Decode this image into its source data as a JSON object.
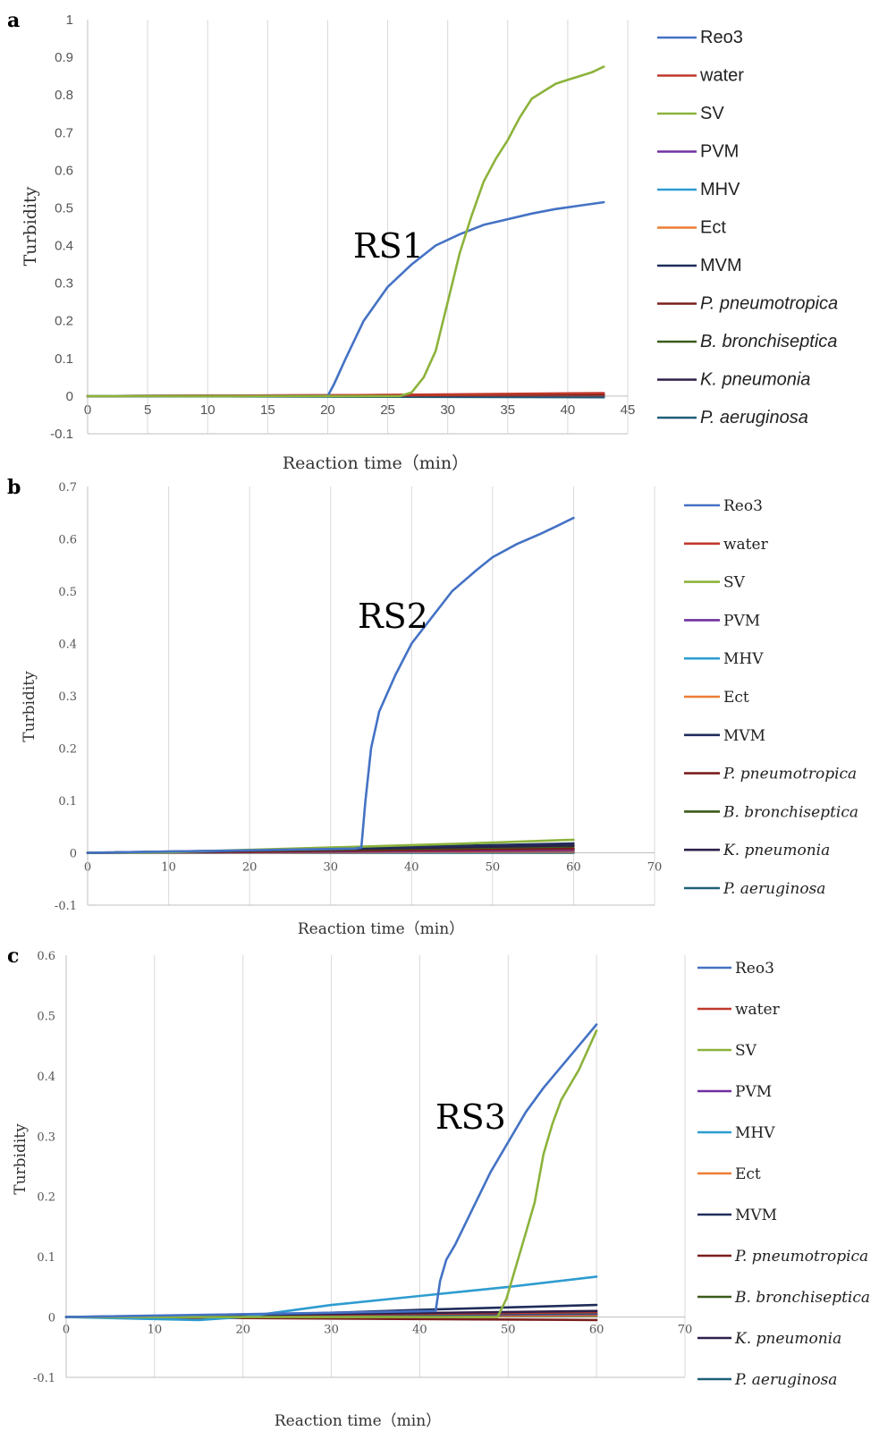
{
  "chart_data": [
    {
      "id": "a",
      "panel_label": "a",
      "type": "line",
      "xlabel": "Reaction time（min）",
      "ylabel": "Turbidity",
      "xlim": [
        0,
        45
      ],
      "ylim": [
        -0.1,
        1
      ],
      "x_ticks": [
        "0",
        "5",
        "10",
        "15",
        "20",
        "25",
        "30",
        "35",
        "40",
        "45"
      ],
      "y_ticks": [
        "-0.1",
        "0",
        "0.1",
        "0.2",
        "0.3",
        "0.4",
        "0.5",
        "0.6",
        "0.7",
        "0.8",
        "0.9",
        "1"
      ],
      "annotation": {
        "text": "RS1",
        "x": 25,
        "y": 0.4
      },
      "grid": "vertical",
      "legend_position": "right",
      "series": [
        {
          "name": "Reo3",
          "italic": false,
          "color": "#4472c4",
          "points": [
            [
              0,
              0
            ],
            [
              20,
              0
            ],
            [
              20.5,
              0.03
            ],
            [
              21.5,
              0.1
            ],
            [
              23,
              0.2
            ],
            [
              25,
              0.29
            ],
            [
              27,
              0.35
            ],
            [
              29,
              0.4
            ],
            [
              31,
              0.43
            ],
            [
              33,
              0.455
            ],
            [
              35,
              0.47
            ],
            [
              37,
              0.485
            ],
            [
              39,
              0.497
            ],
            [
              41,
              0.506
            ],
            [
              43,
              0.515
            ]
          ]
        },
        {
          "name": "water",
          "italic": false,
          "color": "#c0392b",
          "points": [
            [
              0,
              0
            ],
            [
              20,
              0.002
            ],
            [
              43,
              0.008
            ]
          ]
        },
        {
          "name": "SV",
          "italic": false,
          "color": "#8cb33c",
          "points": [
            [
              0,
              0
            ],
            [
              26,
              0
            ],
            [
              27,
              0.01
            ],
            [
              28,
              0.05
            ],
            [
              29,
              0.12
            ],
            [
              30,
              0.25
            ],
            [
              31,
              0.38
            ],
            [
              32,
              0.48
            ],
            [
              33,
              0.57
            ],
            [
              34,
              0.63
            ],
            [
              35,
              0.68
            ],
            [
              36,
              0.74
            ],
            [
              37,
              0.79
            ],
            [
              38,
              0.81
            ],
            [
              39,
              0.83
            ],
            [
              40,
              0.84
            ],
            [
              41,
              0.85
            ],
            [
              42,
              0.86
            ],
            [
              43,
              0.875
            ]
          ]
        },
        {
          "name": "PVM",
          "italic": false,
          "color": "#7030a0",
          "points": [
            [
              0,
              0
            ],
            [
              43,
              0.002
            ]
          ]
        },
        {
          "name": "MHV",
          "italic": false,
          "color": "#2e9cd0",
          "points": [
            [
              0,
              0
            ],
            [
              43,
              -0.002
            ]
          ]
        },
        {
          "name": "Ect",
          "italic": false,
          "color": "#ed7d31",
          "points": [
            [
              0,
              0
            ],
            [
              43,
              0.004
            ]
          ]
        },
        {
          "name": "MVM",
          "italic": false,
          "color": "#1f2d5a",
          "points": [
            [
              0,
              0
            ],
            [
              43,
              0.003
            ]
          ]
        },
        {
          "name": "P. pneumotropica",
          "italic": true,
          "color": "#7b1e1e",
          "points": [
            [
              0,
              0
            ],
            [
              43,
              0.005
            ]
          ]
        },
        {
          "name": "B. bronchiseptica",
          "italic": true,
          "color": "#3a5a1a",
          "points": [
            [
              0,
              0
            ],
            [
              43,
              0.001
            ]
          ]
        },
        {
          "name": "K. pneumonia",
          "italic": true,
          "color": "#2e1f4a",
          "points": [
            [
              0,
              0
            ],
            [
              43,
              0
            ]
          ]
        },
        {
          "name": "P. aeruginosa",
          "italic": true,
          "color": "#1f5f78",
          "points": [
            [
              0,
              0
            ],
            [
              43,
              -0.003
            ]
          ]
        }
      ]
    },
    {
      "id": "b",
      "panel_label": "b",
      "type": "line",
      "xlabel": "Reaction time（min）",
      "ylabel": "Turbidity",
      "xlim": [
        0,
        70
      ],
      "ylim": [
        -0.1,
        0.7
      ],
      "x_ticks": [
        "0",
        "10",
        "20",
        "30",
        "40",
        "50",
        "60",
        "70"
      ],
      "y_ticks": [
        "-0.1",
        "0",
        "0.1",
        "0.2",
        "0.3",
        "0.4",
        "0.5",
        "0.6",
        "0.7"
      ],
      "annotation": {
        "text": "RS2",
        "x": 33.5,
        "y": 0.44
      },
      "grid": "vertical",
      "legend_position": "right",
      "series": [
        {
          "name": "Reo3",
          "italic": false,
          "color": "#4472c4",
          "points": [
            [
              0,
              0
            ],
            [
              33,
              0.008
            ],
            [
              33.8,
              0.01
            ],
            [
              34.3,
              0.1
            ],
            [
              35,
              0.2
            ],
            [
              36,
              0.27
            ],
            [
              38,
              0.34
            ],
            [
              40,
              0.4
            ],
            [
              42,
              0.44
            ],
            [
              45,
              0.5
            ],
            [
              48,
              0.54
            ],
            [
              50,
              0.565
            ],
            [
              53,
              0.59
            ],
            [
              56,
              0.61
            ],
            [
              58,
              0.625
            ],
            [
              60,
              0.64
            ]
          ]
        },
        {
          "name": "water",
          "italic": false,
          "color": "#c0392b",
          "points": [
            [
              0,
              0
            ],
            [
              60,
              0.004
            ]
          ]
        },
        {
          "name": "SV",
          "italic": false,
          "color": "#8cb33c",
          "points": [
            [
              0,
              0
            ],
            [
              10,
              0.001
            ],
            [
              30,
              0.01
            ],
            [
              45,
              0.017
            ],
            [
              60,
              0.025
            ]
          ]
        },
        {
          "name": "PVM",
          "italic": false,
          "color": "#7030a0",
          "points": [
            [
              0,
              0
            ],
            [
              60,
              0.006
            ]
          ]
        },
        {
          "name": "MHV",
          "italic": false,
          "color": "#2e9cd0",
          "points": [
            [
              0,
              0
            ],
            [
              60,
              0.003
            ]
          ]
        },
        {
          "name": "Ect",
          "italic": false,
          "color": "#ed7d31",
          "points": [
            [
              0,
              0
            ],
            [
              60,
              0.002
            ]
          ]
        },
        {
          "name": "MVM",
          "italic": false,
          "color": "#1f2d5a",
          "points": [
            [
              0,
              0
            ],
            [
              10,
              0.001
            ],
            [
              30,
              0.008
            ],
            [
              60,
              0.018
            ]
          ]
        },
        {
          "name": "P. pneumotropica",
          "italic": true,
          "color": "#7b1e1e",
          "points": [
            [
              0,
              0
            ],
            [
              60,
              0.008
            ]
          ]
        },
        {
          "name": "B. bronchiseptica",
          "italic": true,
          "color": "#3a5a1a",
          "points": [
            [
              0,
              0
            ],
            [
              60,
              0.012
            ]
          ]
        },
        {
          "name": "K. pneumonia",
          "italic": true,
          "color": "#2e1f4a",
          "points": [
            [
              0,
              0
            ],
            [
              60,
              0.014
            ]
          ]
        },
        {
          "name": "P. aeruginosa",
          "italic": true,
          "color": "#1f5f78",
          "points": [
            [
              0,
              0
            ],
            [
              60,
              0
            ]
          ]
        }
      ]
    },
    {
      "id": "c",
      "panel_label": "c",
      "type": "line",
      "xlabel": "Reaction time（min）",
      "ylabel": "Turbidity",
      "xlim": [
        0,
        70
      ],
      "ylim": [
        -0.1,
        0.6
      ],
      "x_ticks": [
        "0",
        "10",
        "20",
        "30",
        "40",
        "50",
        "60",
        "70"
      ],
      "y_ticks": [
        "-0.1",
        "0",
        "0.1",
        "0.2",
        "0.3",
        "0.4",
        "0.5",
        "0.6"
      ],
      "annotation": {
        "text": "RS3",
        "x": 42,
        "y": 0.33
      },
      "grid": "vertical",
      "legend_position": "right",
      "series": [
        {
          "name": "Reo3",
          "italic": false,
          "color": "#4472c4",
          "points": [
            [
              0,
              0
            ],
            [
              41.8,
              0.01
            ],
            [
              42.3,
              0.06
            ],
            [
              43,
              0.095
            ],
            [
              44,
              0.12
            ],
            [
              46,
              0.18
            ],
            [
              48,
              0.24
            ],
            [
              50,
              0.29
            ],
            [
              52,
              0.34
            ],
            [
              54,
              0.38
            ],
            [
              56,
              0.415
            ],
            [
              58,
              0.45
            ],
            [
              60,
              0.485
            ]
          ]
        },
        {
          "name": "water",
          "italic": false,
          "color": "#c0392b",
          "points": [
            [
              0,
              0
            ],
            [
              60,
              0.008
            ]
          ]
        },
        {
          "name": "SV",
          "italic": false,
          "color": "#8cb33c",
          "points": [
            [
              0,
              0
            ],
            [
              48.8,
              0
            ],
            [
              49.8,
              0.03
            ],
            [
              51,
              0.09
            ],
            [
              52,
              0.14
            ],
            [
              53,
              0.19
            ],
            [
              54,
              0.27
            ],
            [
              55,
              0.32
            ],
            [
              56,
              0.36
            ],
            [
              58,
              0.41
            ],
            [
              60,
              0.475
            ]
          ]
        },
        {
          "name": "PVM",
          "italic": false,
          "color": "#7030a0",
          "points": [
            [
              0,
              0
            ],
            [
              60,
              0.005
            ]
          ]
        },
        {
          "name": "MHV",
          "italic": false,
          "color": "#2e9cd0",
          "points": [
            [
              0,
              0
            ],
            [
              15,
              -0.005
            ],
            [
              20,
              0
            ],
            [
              30,
              0.02
            ],
            [
              40,
              0.035
            ],
            [
              50,
              0.05
            ],
            [
              60,
              0.067
            ]
          ]
        },
        {
          "name": "Ect",
          "italic": false,
          "color": "#ed7d31",
          "points": [
            [
              0,
              0
            ],
            [
              60,
              0.003
            ]
          ]
        },
        {
          "name": "MVM",
          "italic": false,
          "color": "#1f2d5a",
          "points": [
            [
              0,
              0
            ],
            [
              20,
              0.002
            ],
            [
              40,
              0.012
            ],
            [
              50,
              0.016
            ],
            [
              60,
              0.02
            ]
          ]
        },
        {
          "name": "P. pneumotropica",
          "italic": true,
          "color": "#7b1e1e",
          "points": [
            [
              0,
              0
            ],
            [
              60,
              -0.005
            ]
          ]
        },
        {
          "name": "B. bronchiseptica",
          "italic": true,
          "color": "#3a5a1a",
          "points": [
            [
              0,
              0
            ],
            [
              60,
              0.002
            ]
          ]
        },
        {
          "name": "K. pneumonia",
          "italic": true,
          "color": "#2e1f4a",
          "points": [
            [
              0,
              0
            ],
            [
              60,
              0.01
            ]
          ]
        },
        {
          "name": "P. aeruginosa",
          "italic": true,
          "color": "#1f5f78",
          "points": [
            [
              0,
              0
            ],
            [
              60,
              0.006
            ]
          ]
        }
      ]
    }
  ]
}
